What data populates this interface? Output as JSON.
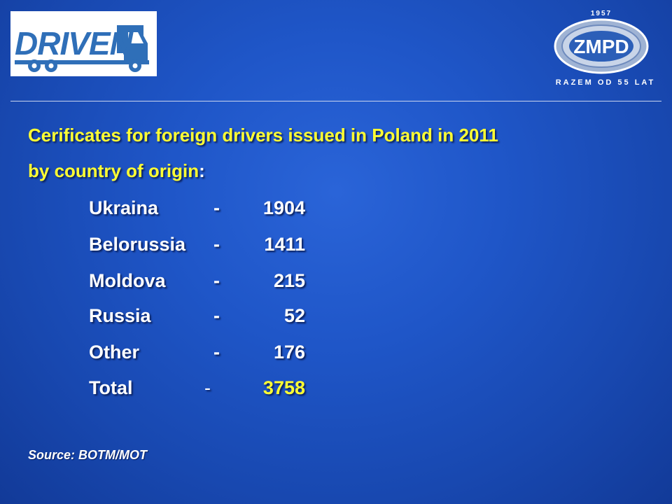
{
  "logos": {
    "left_text": "DRIVEN",
    "right_year": "1957",
    "right_name": "ZMPD",
    "right_tagline": "RAZEM OD 55 LAT"
  },
  "heading": {
    "line1": "Cerificates for foreign drivers issued in Poland in 2011",
    "line2": "by country of origin",
    "line2_colon": ":"
  },
  "rows": [
    {
      "country": "Ukraina",
      "dash": "-",
      "value": "1904"
    },
    {
      "country": "Belorussia",
      "dash": "-",
      "value": "1411"
    },
    {
      "country": "Moldova",
      "dash": "-",
      "value": "215"
    },
    {
      "country": "Russia",
      "dash": "-",
      "value": "52"
    },
    {
      "country": "Other",
      "dash": "-",
      "value": "176"
    },
    {
      "country": "Total",
      "dash": "-",
      "value": "3758"
    }
  ],
  "source": "Source: BOTM/MOT",
  "colors": {
    "background": "#1f56c8",
    "heading": "#ffff33",
    "text": "#ffffff",
    "total_value": "#ffff33"
  }
}
